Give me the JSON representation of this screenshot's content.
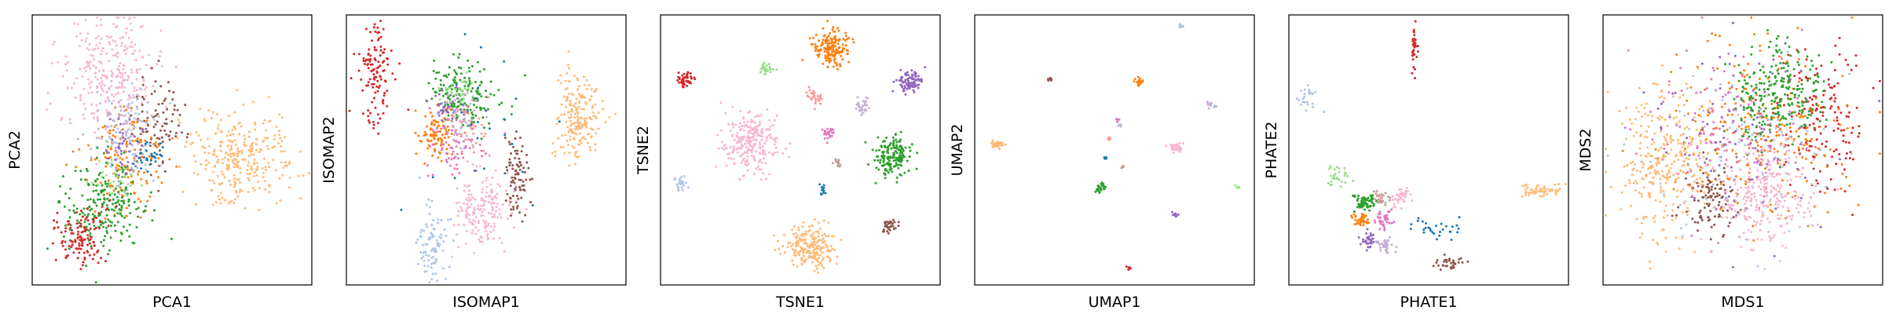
{
  "chart_data": [
    {
      "type": "scatter",
      "xlabel": "PCA1",
      "ylabel": "PCA2",
      "grid": false,
      "clusters": [
        {
          "color": "#f7b6d2",
          "cx": 0.28,
          "cy": 0.22,
          "sx": 0.09,
          "sy": 0.11,
          "n": 280
        },
        {
          "color": "#ffbb78",
          "cx": 0.74,
          "cy": 0.53,
          "sx": 0.09,
          "sy": 0.085,
          "n": 300
        },
        {
          "color": "#8c564b",
          "cx": 0.45,
          "cy": 0.4,
          "sx": 0.05,
          "sy": 0.09,
          "n": 90
        },
        {
          "color": "#ff7f0e",
          "cx": 0.33,
          "cy": 0.55,
          "sx": 0.07,
          "sy": 0.09,
          "n": 140
        },
        {
          "color": "#aec7e8",
          "cx": 0.35,
          "cy": 0.45,
          "sx": 0.05,
          "sy": 0.1,
          "n": 80
        },
        {
          "color": "#c5b0d5",
          "cx": 0.3,
          "cy": 0.42,
          "sx": 0.05,
          "sy": 0.08,
          "n": 60
        },
        {
          "color": "#2ca02c",
          "cx": 0.26,
          "cy": 0.7,
          "sx": 0.07,
          "sy": 0.08,
          "n": 220
        },
        {
          "color": "#d62728",
          "cx": 0.17,
          "cy": 0.82,
          "sx": 0.05,
          "sy": 0.06,
          "n": 120
        },
        {
          "color": "#1f77b4",
          "cx": 0.42,
          "cy": 0.53,
          "sx": 0.03,
          "sy": 0.03,
          "n": 30
        },
        {
          "color": "#9467bd",
          "cx": 0.32,
          "cy": 0.5,
          "sx": 0.04,
          "sy": 0.05,
          "n": 40
        },
        {
          "color": "#98df8a",
          "cx": 0.3,
          "cy": 0.62,
          "sx": 0.04,
          "sy": 0.05,
          "n": 40
        }
      ]
    },
    {
      "type": "scatter",
      "xlabel": "ISOMAP1",
      "ylabel": "ISOMAP2",
      "grid": false,
      "clusters": [
        {
          "color": "#d62728",
          "cx": 0.11,
          "cy": 0.23,
          "sx": 0.035,
          "sy": 0.09,
          "n": 120
        },
        {
          "color": "#ffbb78",
          "cx": 0.83,
          "cy": 0.37,
          "sx": 0.04,
          "sy": 0.09,
          "n": 200
        },
        {
          "color": "#2ca02c",
          "cx": 0.42,
          "cy": 0.3,
          "sx": 0.06,
          "sy": 0.06,
          "n": 180
        },
        {
          "color": "#ff7f0e",
          "cx": 0.32,
          "cy": 0.43,
          "sx": 0.03,
          "sy": 0.05,
          "n": 90
        },
        {
          "color": "#e377c2",
          "cx": 0.38,
          "cy": 0.48,
          "sx": 0.04,
          "sy": 0.06,
          "n": 70
        },
        {
          "color": "#9467bd",
          "cx": 0.36,
          "cy": 0.33,
          "sx": 0.03,
          "sy": 0.03,
          "n": 40
        },
        {
          "color": "#c5b0d5",
          "cx": 0.4,
          "cy": 0.4,
          "sx": 0.04,
          "sy": 0.05,
          "n": 40
        },
        {
          "color": "#ff9896",
          "cx": 0.45,
          "cy": 0.42,
          "sx": 0.04,
          "sy": 0.05,
          "n": 40
        },
        {
          "color": "#8c564b",
          "cx": 0.61,
          "cy": 0.59,
          "sx": 0.025,
          "sy": 0.07,
          "n": 90
        },
        {
          "color": "#f7b6d2",
          "cx": 0.49,
          "cy": 0.73,
          "sx": 0.05,
          "sy": 0.07,
          "n": 180
        },
        {
          "color": "#aec7e8",
          "cx": 0.31,
          "cy": 0.85,
          "sx": 0.03,
          "sy": 0.07,
          "n": 90
        },
        {
          "color": "#1f77b4",
          "cx": 0.52,
          "cy": 0.4,
          "sx": 0.1,
          "sy": 0.14,
          "n": 25
        },
        {
          "color": "#98df8a",
          "cx": 0.39,
          "cy": 0.28,
          "sx": 0.03,
          "sy": 0.03,
          "n": 30
        }
      ]
    },
    {
      "type": "scatter",
      "xlabel": "TSNE1",
      "ylabel": "TSNE2",
      "grid": false,
      "clusters": [
        {
          "color": "#ff7f0e",
          "cx": 0.61,
          "cy": 0.12,
          "sx": 0.03,
          "sy": 0.035,
          "n": 160
        },
        {
          "color": "#d62728",
          "cx": 0.09,
          "cy": 0.24,
          "sx": 0.013,
          "sy": 0.015,
          "n": 50
        },
        {
          "color": "#98df8a",
          "cx": 0.38,
          "cy": 0.2,
          "sx": 0.012,
          "sy": 0.012,
          "n": 25
        },
        {
          "color": "#9467bd",
          "cx": 0.89,
          "cy": 0.25,
          "sx": 0.022,
          "sy": 0.022,
          "n": 90
        },
        {
          "color": "#ff9896",
          "cx": 0.55,
          "cy": 0.3,
          "sx": 0.015,
          "sy": 0.015,
          "n": 30
        },
        {
          "color": "#c5b0d5",
          "cx": 0.72,
          "cy": 0.34,
          "sx": 0.015,
          "sy": 0.015,
          "n": 30
        },
        {
          "color": "#f7b6d2",
          "cx": 0.32,
          "cy": 0.47,
          "sx": 0.05,
          "sy": 0.055,
          "n": 260
        },
        {
          "color": "#e377c2",
          "cx": 0.6,
          "cy": 0.44,
          "sx": 0.012,
          "sy": 0.014,
          "n": 25
        },
        {
          "color": "#2ca02c",
          "cx": 0.83,
          "cy": 0.52,
          "sx": 0.035,
          "sy": 0.035,
          "n": 170
        },
        {
          "color": "#c49c94",
          "cx": 0.63,
          "cy": 0.55,
          "sx": 0.008,
          "sy": 0.008,
          "n": 15
        },
        {
          "color": "#aec7e8",
          "cx": 0.07,
          "cy": 0.62,
          "sx": 0.012,
          "sy": 0.015,
          "n": 25
        },
        {
          "color": "#1f77b4",
          "cx": 0.58,
          "cy": 0.65,
          "sx": 0.008,
          "sy": 0.012,
          "n": 12
        },
        {
          "color": "#8c564b",
          "cx": 0.82,
          "cy": 0.78,
          "sx": 0.014,
          "sy": 0.014,
          "n": 35
        },
        {
          "color": "#ffbb78",
          "cx": 0.54,
          "cy": 0.86,
          "sx": 0.045,
          "sy": 0.04,
          "n": 220
        }
      ]
    },
    {
      "type": "scatter",
      "xlabel": "UMAP1",
      "ylabel": "UMAP2",
      "grid": false,
      "clusters": [
        {
          "color": "#aec7e8",
          "cx": 0.74,
          "cy": 0.045,
          "sx": 0.004,
          "sy": 0.004,
          "n": 8
        },
        {
          "color": "#8c564b",
          "cx": 0.27,
          "cy": 0.24,
          "sx": 0.004,
          "sy": 0.004,
          "n": 8
        },
        {
          "color": "#ff7f0e",
          "cx": 0.59,
          "cy": 0.25,
          "sx": 0.008,
          "sy": 0.008,
          "n": 20
        },
        {
          "color": "#c5b0d5",
          "cx": 0.84,
          "cy": 0.33,
          "sx": 0.006,
          "sy": 0.006,
          "n": 10
        },
        {
          "color": "#aec7e8",
          "cx": 0.86,
          "cy": 0.34,
          "sx": 0.003,
          "sy": 0.003,
          "n": 6
        },
        {
          "color": "#e377c2",
          "cx": 0.51,
          "cy": 0.39,
          "sx": 0.003,
          "sy": 0.003,
          "n": 6
        },
        {
          "color": "#c5b0d5",
          "cx": 0.52,
          "cy": 0.41,
          "sx": 0.003,
          "sy": 0.003,
          "n": 6
        },
        {
          "color": "#ffbb78",
          "cx": 0.08,
          "cy": 0.48,
          "sx": 0.012,
          "sy": 0.007,
          "n": 35
        },
        {
          "color": "#ff9896",
          "cx": 0.48,
          "cy": 0.46,
          "sx": 0.004,
          "sy": 0.004,
          "n": 8
        },
        {
          "color": "#f7b6d2",
          "cx": 0.72,
          "cy": 0.49,
          "sx": 0.012,
          "sy": 0.009,
          "n": 35
        },
        {
          "color": "#1f77b4",
          "cx": 0.47,
          "cy": 0.53,
          "sx": 0.003,
          "sy": 0.003,
          "n": 5
        },
        {
          "color": "#c49c94",
          "cx": 0.53,
          "cy": 0.56,
          "sx": 0.003,
          "sy": 0.003,
          "n": 5
        },
        {
          "color": "#2ca02c",
          "cx": 0.45,
          "cy": 0.64,
          "sx": 0.009,
          "sy": 0.009,
          "n": 25
        },
        {
          "color": "#98df8a",
          "cx": 0.94,
          "cy": 0.64,
          "sx": 0.004,
          "sy": 0.004,
          "n": 6
        },
        {
          "color": "#9467bd",
          "cx": 0.72,
          "cy": 0.74,
          "sx": 0.006,
          "sy": 0.006,
          "n": 12
        },
        {
          "color": "#d62728",
          "cx": 0.55,
          "cy": 0.94,
          "sx": 0.004,
          "sy": 0.004,
          "n": 6
        }
      ]
    },
    {
      "type": "scatter",
      "xlabel": "PHATE1",
      "ylabel": "PHATE2",
      "grid": false,
      "clusters": [
        {
          "color": "#d62728",
          "cx": 0.45,
          "cy": 0.12,
          "sx": 0.006,
          "sy": 0.04,
          "n": 35
        },
        {
          "color": "#aec7e8",
          "cx": 0.07,
          "cy": 0.3,
          "sx": 0.02,
          "sy": 0.03,
          "n": 25
        },
        {
          "color": "#98df8a",
          "cx": 0.17,
          "cy": 0.6,
          "sx": 0.02,
          "sy": 0.025,
          "n": 30
        },
        {
          "color": "#2ca02c",
          "cx": 0.27,
          "cy": 0.69,
          "sx": 0.02,
          "sy": 0.015,
          "n": 60
        },
        {
          "color": "#c49c94",
          "cx": 0.33,
          "cy": 0.68,
          "sx": 0.015,
          "sy": 0.015,
          "n": 30
        },
        {
          "color": "#f7b6d2",
          "cx": 0.4,
          "cy": 0.68,
          "sx": 0.025,
          "sy": 0.02,
          "n": 40
        },
        {
          "color": "#ff7f0e",
          "cx": 0.26,
          "cy": 0.76,
          "sx": 0.015,
          "sy": 0.012,
          "n": 40
        },
        {
          "color": "#e377c2",
          "cx": 0.34,
          "cy": 0.76,
          "sx": 0.015,
          "sy": 0.02,
          "n": 40
        },
        {
          "color": "#9467bd",
          "cx": 0.28,
          "cy": 0.84,
          "sx": 0.015,
          "sy": 0.015,
          "n": 35
        },
        {
          "color": "#c5b0d5",
          "cx": 0.35,
          "cy": 0.86,
          "sx": 0.02,
          "sy": 0.015,
          "n": 35
        },
        {
          "color": "#1f77b4",
          "cx": 0.54,
          "cy": 0.79,
          "sx": 0.04,
          "sy": 0.02,
          "n": 30
        },
        {
          "color": "#8c564b",
          "cx": 0.58,
          "cy": 0.92,
          "sx": 0.03,
          "sy": 0.015,
          "n": 35
        },
        {
          "color": "#ffbb78",
          "cx": 0.9,
          "cy": 0.65,
          "sx": 0.04,
          "sy": 0.012,
          "n": 55
        }
      ]
    },
    {
      "type": "scatter",
      "xlabel": "MDS1",
      "ylabel": "MDS2",
      "grid": false,
      "clusters": [
        {
          "color": "#d62728",
          "cx": 0.78,
          "cy": 0.38,
          "sx": 0.08,
          "sy": 0.14,
          "n": 160
        },
        {
          "color": "#ff7f0e",
          "cx": 0.55,
          "cy": 0.42,
          "sx": 0.15,
          "sy": 0.16,
          "n": 260
        },
        {
          "color": "#8c564b",
          "cx": 0.38,
          "cy": 0.7,
          "sx": 0.06,
          "sy": 0.08,
          "n": 100
        },
        {
          "color": "#9467bd",
          "cx": 0.5,
          "cy": 0.45,
          "sx": 0.15,
          "sy": 0.17,
          "n": 120
        },
        {
          "color": "#e377c2",
          "cx": 0.45,
          "cy": 0.4,
          "sx": 0.14,
          "sy": 0.16,
          "n": 120
        },
        {
          "color": "#aec7e8",
          "cx": 0.5,
          "cy": 0.5,
          "sx": 0.16,
          "sy": 0.17,
          "n": 80
        },
        {
          "color": "#ffbb78",
          "cx": 0.22,
          "cy": 0.56,
          "sx": 0.08,
          "sy": 0.14,
          "n": 300
        },
        {
          "color": "#2ca02c",
          "cx": 0.62,
          "cy": 0.3,
          "sx": 0.08,
          "sy": 0.09,
          "n": 250
        },
        {
          "color": "#f7b6d2",
          "cx": 0.58,
          "cy": 0.66,
          "sx": 0.08,
          "sy": 0.1,
          "n": 280
        }
      ]
    }
  ]
}
